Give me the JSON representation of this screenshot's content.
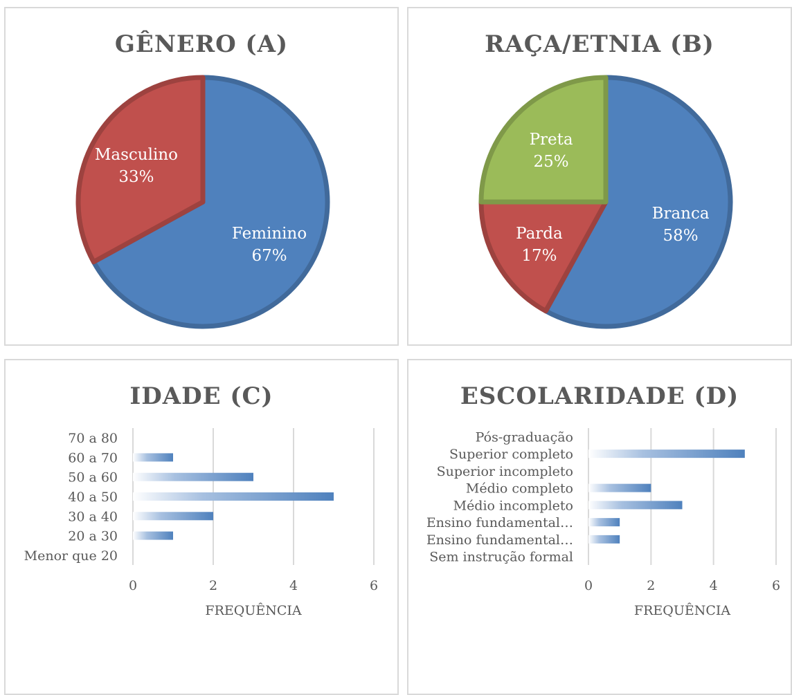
{
  "colors": {
    "blue": "#4f81bd",
    "red": "#c0504d",
    "green": "#9bbb59",
    "grid": "#d9d9d9",
    "text": "#595959"
  },
  "chart_data": [
    {
      "type": "pie",
      "title": "GÊNERO (A)",
      "slices": [
        {
          "label": "Feminino",
          "value": 67,
          "display": "67%"
        },
        {
          "label": "Masculino",
          "value": 33,
          "display": "33%"
        }
      ]
    },
    {
      "type": "pie",
      "title": "RAÇA/ETNIA (B)",
      "slices": [
        {
          "label": "Branca",
          "value": 58,
          "display": "58%"
        },
        {
          "label": "Parda",
          "value": 17,
          "display": "17%"
        },
        {
          "label": "Preta",
          "value": 25,
          "display": "25%"
        }
      ]
    },
    {
      "type": "bar",
      "orientation": "horizontal",
      "title": "IDADE (C)",
      "xlabel": "FREQUÊNCIA",
      "ylabel": "",
      "xlim": [
        0,
        6
      ],
      "xticks": [
        "0",
        "2",
        "4",
        "6"
      ],
      "grid": true,
      "categories": [
        "Menor que 20",
        "20 a 30",
        "30 a 40",
        "40 a 50",
        "50 a 60",
        "60 a 70",
        "70 a 80"
      ],
      "values": [
        0,
        1,
        2,
        5,
        3,
        1,
        0
      ]
    },
    {
      "type": "bar",
      "orientation": "horizontal",
      "title": "ESCOLARIDADE (D)",
      "xlabel": "FREQUÊNCIA",
      "ylabel": "",
      "xlim": [
        0,
        6
      ],
      "xticks": [
        "0",
        "2",
        "4",
        "6"
      ],
      "grid": true,
      "categories": [
        "Sem instrução formal",
        "Ensino fundamental…",
        "Ensino fundamental…",
        "Médio incompleto",
        "Médio completo",
        "Superior incompleto",
        "Superior completo",
        "Pós-graduação"
      ],
      "values": [
        0,
        1,
        1,
        3,
        2,
        0,
        5,
        0
      ]
    }
  ]
}
